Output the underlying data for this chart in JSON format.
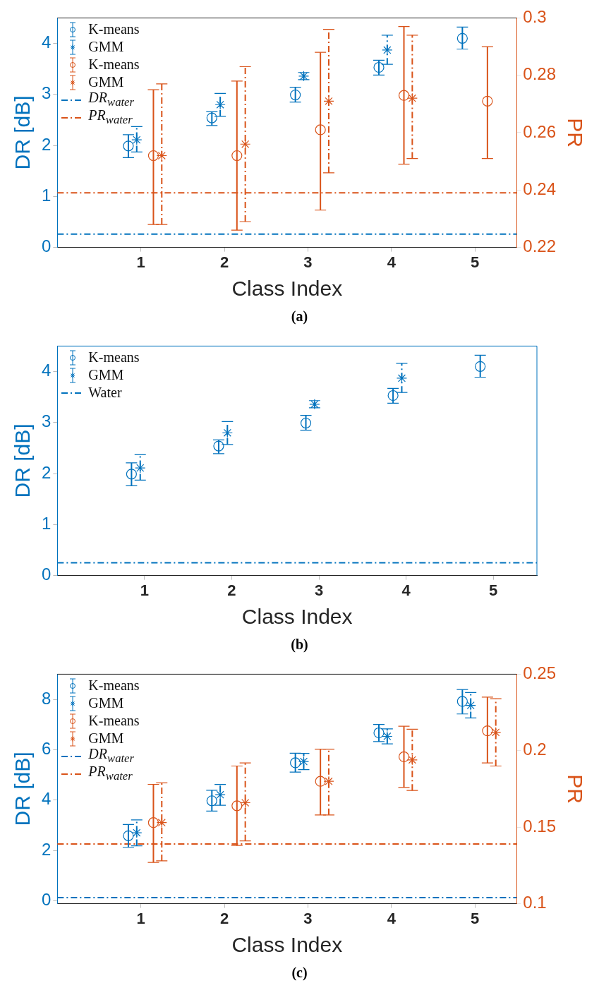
{
  "chart_data": [
    {
      "type": "scatter",
      "xlabel": "Class Index",
      "ylabel": "DR [dB]",
      "y2label": "PR",
      "annotations": [
        "(a)"
      ],
      "xlim": [
        0,
        5.5
      ],
      "xticks": [
        1,
        2,
        3,
        4,
        5
      ],
      "ylim": [
        0,
        4.5
      ],
      "yticks": [
        0,
        1,
        2,
        3,
        4
      ],
      "y2lim": [
        0.22,
        0.3
      ],
      "y2ticks": [
        0.22,
        0.24,
        0.26,
        0.28,
        0.3
      ],
      "grid": false,
      "legend": "top left",
      "series": [
        {
          "name": "K-means",
          "color": "#0072bd",
          "marker": "circle",
          "line_style": "solid",
          "axis": "y",
          "x": [
            0.85,
            1.85,
            2.85,
            3.85,
            4.85
          ],
          "values": [
            1.99,
            2.54,
            2.99,
            3.53,
            4.1
          ],
          "errors": [
            [
              1.76,
              2.21
            ],
            [
              2.39,
              2.66
            ],
            [
              2.85,
              3.14
            ],
            [
              3.38,
              3.67
            ],
            [
              3.89,
              4.32
            ]
          ]
        },
        {
          "name": "GMM",
          "color": "#0072bd",
          "marker": "cross",
          "line_style": "dashed",
          "axis": "y",
          "x": [
            0.95,
            1.95,
            2.95,
            3.95,
            null
          ],
          "values": [
            2.11,
            2.8,
            3.36,
            3.87,
            null
          ],
          "errors": [
            [
              1.87,
              2.37
            ],
            [
              2.57,
              3.02
            ],
            [
              3.29,
              3.43
            ],
            [
              3.59,
              4.16
            ],
            null
          ]
        },
        {
          "name": "K-means",
          "color": "#d95319",
          "marker": "circle",
          "line_style": "solid",
          "axis": "y2",
          "x": [
            1.15,
            2.15,
            3.15,
            4.15,
            5.15
          ],
          "values": [
            0.252,
            0.252,
            0.261,
            0.273,
            0.271
          ],
          "errors": [
            [
              0.228,
              0.275
            ],
            [
              0.226,
              0.278
            ],
            [
              0.233,
              0.288
            ],
            [
              0.249,
              0.297
            ],
            [
              0.251,
              0.29
            ]
          ]
        },
        {
          "name": "GMM",
          "color": "#d95319",
          "marker": "cross",
          "line_style": "dashed",
          "axis": "y2",
          "x": [
            1.25,
            2.25,
            3.25,
            4.25,
            null
          ],
          "values": [
            0.252,
            0.256,
            0.271,
            0.272,
            null
          ],
          "errors": [
            [
              0.228,
              0.277
            ],
            [
              0.229,
              0.283
            ],
            [
              0.246,
              0.296
            ],
            [
              0.251,
              0.294
            ],
            null
          ]
        }
      ],
      "ref_lines": [
        {
          "axis": "y",
          "value": 0.26,
          "label": "DR$_{water}$",
          "color": "#0072bd",
          "line_style": "dashed"
        },
        {
          "axis": "y2",
          "value": 0.239,
          "label": "PR$_{water}$",
          "color": "#d95319",
          "line_style": "dashed"
        }
      ]
    },
    {
      "type": "scatter",
      "xlabel": "Class Index",
      "ylabel": "DR [dB]",
      "annotations": [
        "(b)"
      ],
      "xlim": [
        0,
        5.5
      ],
      "xticks": [
        1,
        2,
        3,
        4,
        5
      ],
      "ylim": [
        0,
        4.5
      ],
      "yticks": [
        0,
        1,
        2,
        3,
        4
      ],
      "grid": false,
      "legend": "top left",
      "series": [
        {
          "name": "K-means",
          "color": "#0072bd",
          "marker": "circle",
          "line_style": "solid",
          "axis": "y",
          "x": [
            0.85,
            1.85,
            2.85,
            3.85,
            4.85
          ],
          "values": [
            1.99,
            2.54,
            2.99,
            3.53,
            4.1
          ],
          "errors": [
            [
              1.76,
              2.21
            ],
            [
              2.39,
              2.66
            ],
            [
              2.85,
              3.14
            ],
            [
              3.38,
              3.67
            ],
            [
              3.89,
              4.32
            ]
          ]
        },
        {
          "name": "GMM",
          "color": "#0072bd",
          "marker": "cross",
          "line_style": "dashed",
          "axis": "y",
          "x": [
            0.95,
            1.95,
            2.95,
            3.95,
            null
          ],
          "values": [
            2.11,
            2.8,
            3.36,
            3.87,
            null
          ],
          "errors": [
            [
              1.87,
              2.37
            ],
            [
              2.57,
              3.02
            ],
            [
              3.29,
              3.43
            ],
            [
              3.59,
              4.16
            ],
            null
          ]
        }
      ],
      "ref_lines": [
        {
          "axis": "y",
          "value": 0.25,
          "label": "Water",
          "color": "#0072bd",
          "line_style": "dashed"
        }
      ]
    },
    {
      "type": "scatter",
      "xlabel": "Class Index",
      "ylabel": "DR [dB]",
      "y2label": "PR",
      "annotations": [
        "(c)"
      ],
      "xlim": [
        0,
        5.5
      ],
      "xticks": [
        1,
        2,
        3,
        4,
        5
      ],
      "ylim": [
        -0.12,
        9
      ],
      "yticks": [
        0,
        2,
        4,
        6,
        8
      ],
      "y2lim": [
        0.1,
        0.25
      ],
      "y2ticks": [
        0.1,
        0.15,
        0.2,
        0.25
      ],
      "grid": false,
      "legend": "top left",
      "series": [
        {
          "name": "K-means",
          "color": "#0072bd",
          "marker": "circle",
          "line_style": "solid",
          "axis": "y",
          "x": [
            0.85,
            1.85,
            2.85,
            3.85,
            4.85
          ],
          "values": [
            2.58,
            3.97,
            5.48,
            6.67,
            7.92
          ],
          "errors": [
            [
              2.12,
              3.03
            ],
            [
              3.56,
              4.39
            ],
            [
              5.11,
              5.86
            ],
            [
              6.32,
              7.0
            ],
            [
              7.42,
              8.39
            ]
          ]
        },
        {
          "name": "GMM",
          "color": "#0072bd",
          "marker": "cross",
          "line_style": "dashed",
          "axis": "y",
          "x": [
            0.95,
            1.95,
            2.95,
            3.95,
            4.95
          ],
          "values": [
            2.7,
            4.21,
            5.53,
            6.53,
            7.76
          ],
          "errors": [
            [
              2.18,
              3.21
            ],
            [
              3.79,
              4.62
            ],
            [
              5.21,
              5.85
            ],
            [
              6.23,
              6.83
            ],
            [
              7.26,
              8.27
            ]
          ]
        },
        {
          "name": "K-means",
          "color": "#d95319",
          "marker": "circle",
          "line_style": "solid",
          "axis": "y2",
          "x": [
            1.15,
            2.15,
            3.15,
            4.15,
            5.15
          ],
          "values": [
            0.153,
            0.164,
            0.18,
            0.196,
            0.213
          ],
          "errors": [
            [
              0.127,
              0.178
            ],
            [
              0.138,
              0.19
            ],
            [
              0.158,
              0.201
            ],
            [
              0.176,
              0.216
            ],
            [
              0.192,
              0.235
            ]
          ]
        },
        {
          "name": "GMM",
          "color": "#d95319",
          "marker": "cross",
          "line_style": "dashed",
          "axis": "y2",
          "x": [
            1.25,
            2.25,
            3.25,
            4.25,
            5.25
          ],
          "values": [
            0.153,
            0.166,
            0.18,
            0.194,
            0.212
          ],
          "errors": [
            [
              0.128,
              0.179
            ],
            [
              0.141,
              0.192
            ],
            [
              0.158,
              0.201
            ],
            [
              0.174,
              0.214
            ],
            [
              0.19,
              0.234
            ]
          ]
        }
      ],
      "ref_lines": [
        {
          "axis": "y",
          "value": 0.12,
          "label": "DR$_{water}$",
          "color": "#0072bd",
          "line_style": "dashed"
        },
        {
          "axis": "y2",
          "value": 0.139,
          "label": "PR$_{water}$",
          "color": "#d95319",
          "line_style": "dashed"
        }
      ]
    }
  ]
}
